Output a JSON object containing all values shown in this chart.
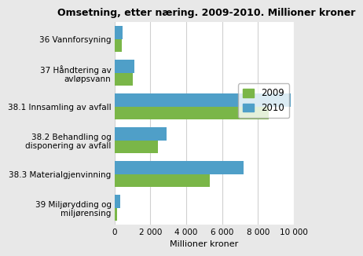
{
  "title": "Omsetning, etter næring. 2009-2010. Millioner kroner",
  "categories": [
    "36 Vannforsyning",
    "37 Håndtering av\navløpsvann",
    "38.1 Innsamling av avfall",
    "38.2 Behandling og\ndisponering av avfall",
    "38.3 Materialgjenvinning",
    "39 Miljørydding og\nmiljørensing"
  ],
  "values_2009": [
    400,
    1000,
    8600,
    2400,
    5300,
    120
  ],
  "values_2010": [
    430,
    1100,
    9800,
    2900,
    7200,
    320
  ],
  "color_2009": "#7ab648",
  "color_2010": "#4f9fc8",
  "xlabel": "Millioner kroner",
  "xlim": [
    0,
    10000
  ],
  "xticks": [
    0,
    2000,
    4000,
    6000,
    8000,
    10000
  ],
  "xtick_labels": [
    "0",
    "2 000",
    "4 000",
    "6 000",
    "8 000",
    "10 000"
  ],
  "legend_labels": [
    "2009",
    "2010"
  ],
  "plot_bg_color": "#ffffff",
  "fig_bg_color": "#e8e8e8",
  "grid_color": "#d0d0d0",
  "bar_height": 0.38,
  "title_fontsize": 9,
  "tick_fontsize": 7.5,
  "label_fontsize": 8,
  "legend_fontsize": 8.5
}
